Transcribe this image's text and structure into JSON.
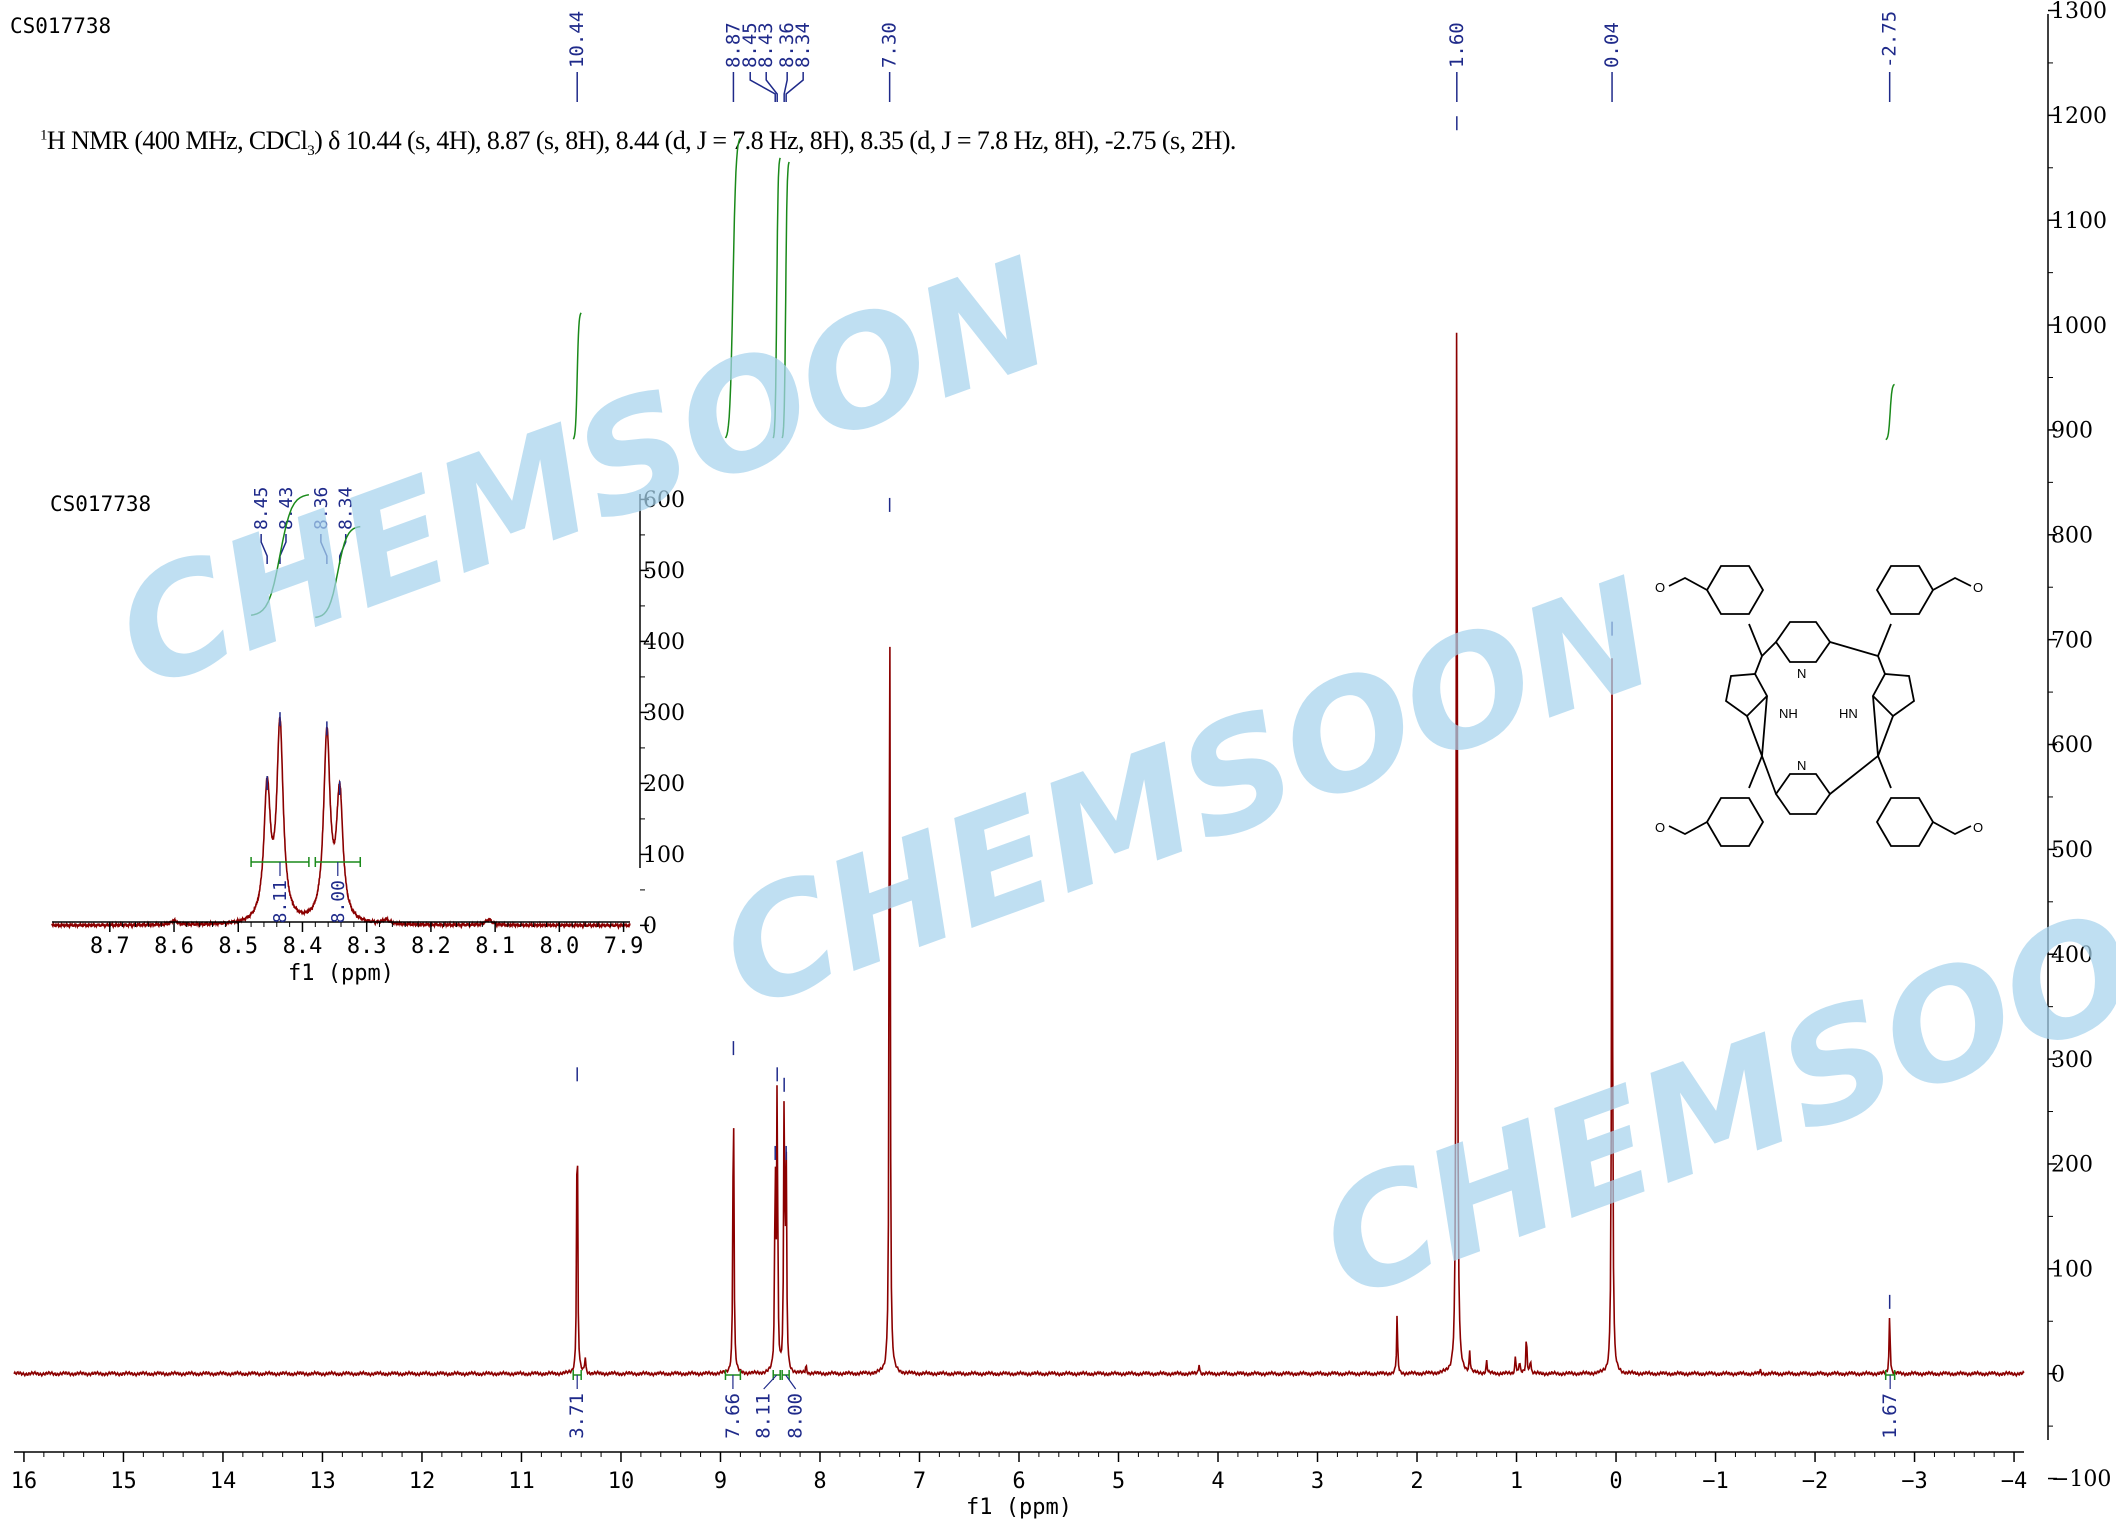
{
  "sample_id": "CS017738",
  "inset_sample_id": "CS017738",
  "nmr_description": {
    "prefix": "H NMR (400 MHz, CDCl",
    "sup": "1",
    "sub": "3",
    "rest": ") δ 10.44 (s, 4H), 8.87 (s, 8H), 8.44 (d, J = 7.8 Hz, 8H), 8.35 (d, J = 7.8 Hz, 8H), -2.75 (s, 2H)."
  },
  "watermark": "CHEMSOON",
  "colors": {
    "spectrum": "#8b0000",
    "peak_label": "#1f2a8a",
    "integral": "#1a8a1a",
    "axis": "#000000",
    "watermark": "#a7d4ee"
  },
  "chart_data": [
    {
      "type": "line",
      "name": "main-spectrum",
      "xlabel": "f1 (ppm)",
      "xlim": [
        16.1,
        -4.1
      ],
      "ylim": [
        -130,
        1310
      ],
      "x_ticks": [
        "16",
        "15",
        "14",
        "13",
        "12",
        "11",
        "10",
        "9",
        "8",
        "7",
        "6",
        "5",
        "4",
        "3",
        "2",
        "1",
        "0",
        "−1",
        "−2",
        "−3",
        "−4"
      ],
      "x_tick_values": [
        16,
        15,
        14,
        13,
        12,
        11,
        10,
        9,
        8,
        7,
        6,
        5,
        4,
        3,
        2,
        1,
        0,
        -1,
        -2,
        -3,
        -4
      ],
      "y_ticks": [
        "−100",
        "0",
        "100",
        "200",
        "300",
        "400",
        "500",
        "600",
        "700",
        "800",
        "900",
        "1000",
        "1100",
        "1200",
        "1300"
      ],
      "y_tick_values": [
        -100,
        0,
        100,
        200,
        300,
        400,
        500,
        600,
        700,
        800,
        900,
        1000,
        1100,
        1200,
        1300
      ],
      "peaks": [
        {
          "ppm": 10.44,
          "height": 275
        },
        {
          "ppm": 10.36,
          "height": 15
        },
        {
          "ppm": 8.87,
          "height": 300
        },
        {
          "ppm": 8.45,
          "height": 200
        },
        {
          "ppm": 8.43,
          "height": 275
        },
        {
          "ppm": 8.36,
          "height": 265
        },
        {
          "ppm": 8.34,
          "height": 200
        },
        {
          "ppm": 8.14,
          "height": 8
        },
        {
          "ppm": 7.3,
          "height": 818
        },
        {
          "ppm": 4.19,
          "height": 10
        },
        {
          "ppm": 2.2,
          "height": 55
        },
        {
          "ppm": 1.6,
          "height": 1182
        },
        {
          "ppm": 1.47,
          "height": 20
        },
        {
          "ppm": 1.3,
          "height": 12
        },
        {
          "ppm": 1.01,
          "height": 18
        },
        {
          "ppm": 0.97,
          "height": 12
        },
        {
          "ppm": 0.9,
          "height": 38
        },
        {
          "ppm": 0.86,
          "height": 15
        },
        {
          "ppm": 0.04,
          "height": 700
        },
        {
          "ppm": -1.45,
          "height": 3
        },
        {
          "ppm": -2.75,
          "height": 58
        }
      ],
      "peak_labels": [
        {
          "text": "10.44",
          "ppm": 10.44
        },
        {
          "text": "8.87",
          "ppm": 8.87
        },
        {
          "text": "8.45",
          "ppm": 8.45
        },
        {
          "text": "8.43",
          "ppm": 8.43
        },
        {
          "text": "8.36",
          "ppm": 8.36
        },
        {
          "text": "8.34",
          "ppm": 8.34
        },
        {
          "text": "7.30",
          "ppm": 7.3
        },
        {
          "text": "1.60",
          "ppm": 1.6
        },
        {
          "text": "0.04",
          "ppm": 0.04
        },
        {
          "text": "-2.75",
          "ppm": -2.75
        }
      ],
      "integrals": [
        {
          "value": "3.71",
          "from": 10.48,
          "to": 10.4
        },
        {
          "value": "7.66",
          "from": 8.95,
          "to": 8.8
        },
        {
          "value": "8.11",
          "from": 8.47,
          "to": 8.4
        },
        {
          "value": "8.00",
          "from": 8.38,
          "to": 8.31
        },
        {
          "value": "1.67",
          "from": -2.71,
          "to": -2.8
        }
      ]
    },
    {
      "type": "line",
      "name": "inset-spectrum",
      "xlabel": "f1 (ppm)",
      "xlim": [
        8.79,
        7.89
      ],
      "ylim": [
        -60,
        640
      ],
      "x_ticks": [
        "8.7",
        "8.6",
        "8.5",
        "8.4",
        "8.3",
        "8.2",
        "8.1",
        "8.0",
        "7.9"
      ],
      "x_tick_values": [
        8.7,
        8.6,
        8.5,
        8.4,
        8.3,
        8.2,
        8.1,
        8.0,
        7.9
      ],
      "y_ticks": [
        "0",
        "100",
        "200",
        "300",
        "400",
        "500",
        "600"
      ],
      "y_tick_values": [
        0,
        100,
        200,
        300,
        400,
        500,
        600
      ],
      "peaks": [
        {
          "ppm": 8.455,
          "height": 185
        },
        {
          "ppm": 8.435,
          "height": 275
        },
        {
          "ppm": 8.362,
          "height": 262
        },
        {
          "ppm": 8.342,
          "height": 178
        },
        {
          "ppm": 8.6,
          "height": 6
        },
        {
          "ppm": 8.27,
          "height": 6
        },
        {
          "ppm": 8.11,
          "height": 8
        }
      ],
      "peak_labels": [
        {
          "text": "8.45",
          "ppm": 8.455
        },
        {
          "text": "8.43",
          "ppm": 8.435
        },
        {
          "text": "8.36",
          "ppm": 8.362
        },
        {
          "text": "8.34",
          "ppm": 8.342
        }
      ],
      "integrals": [
        {
          "value": "8.11",
          "from": 8.48,
          "to": 8.39
        },
        {
          "value": "8.00",
          "from": 8.38,
          "to": 8.31
        }
      ]
    }
  ],
  "structure_labels": {
    "nh_left": "NH",
    "nh_right": "HN",
    "n": "N",
    "o": "O"
  }
}
